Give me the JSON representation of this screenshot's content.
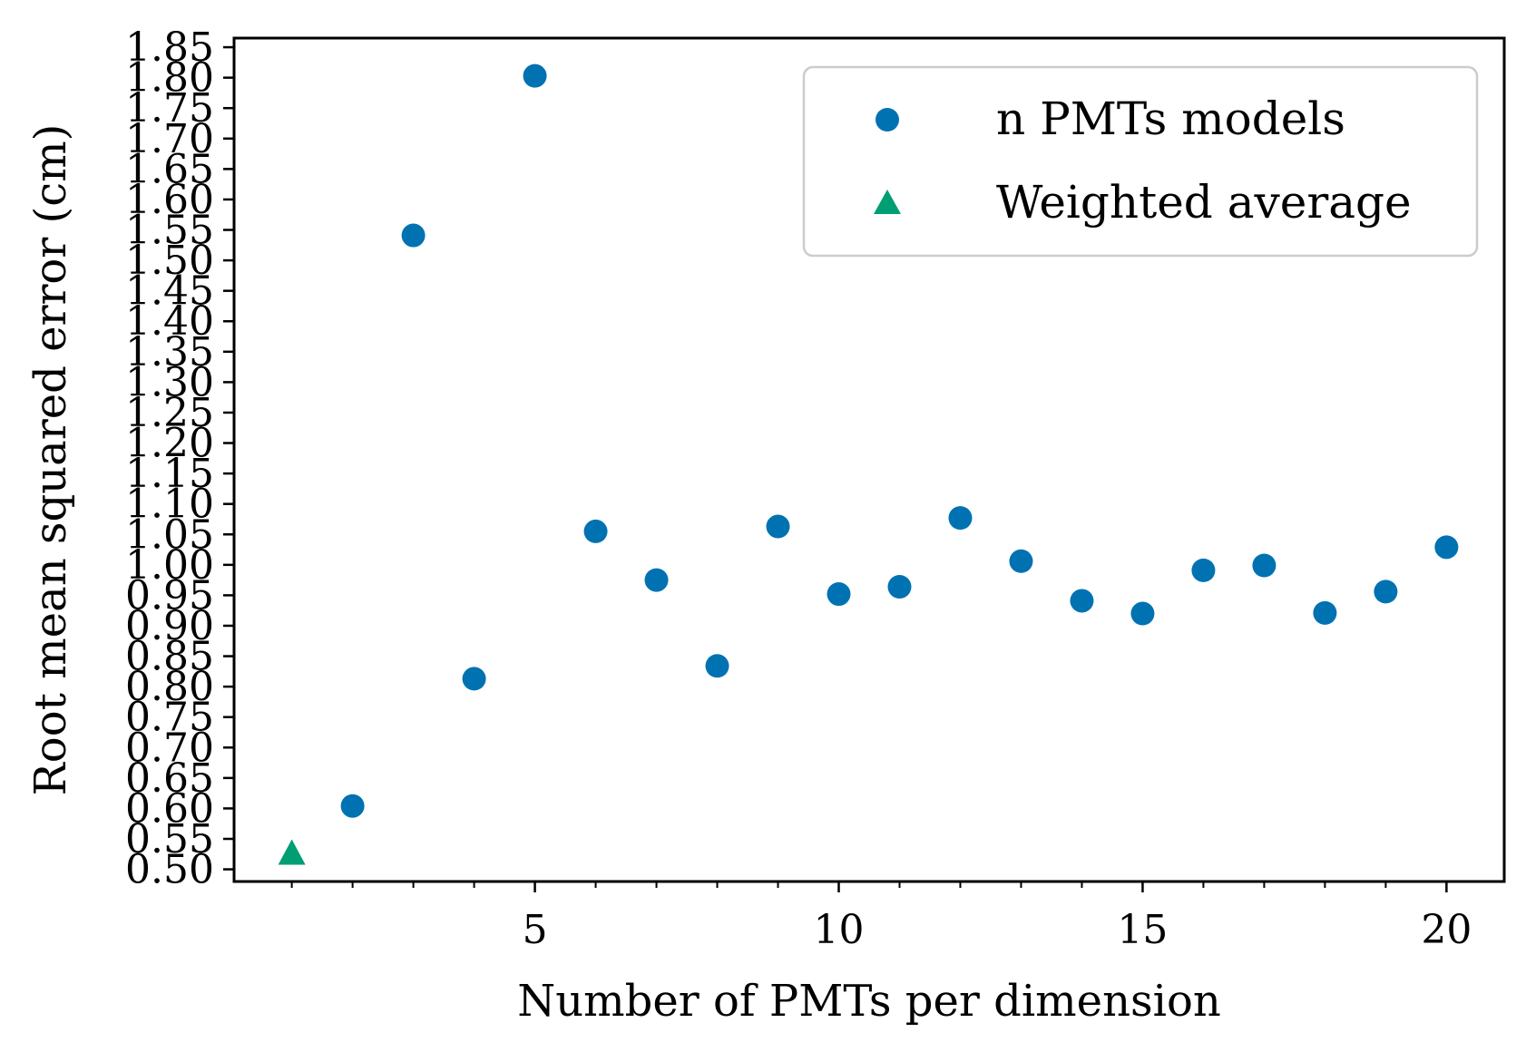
{
  "chart_data": {
    "type": "scatter",
    "xlabel": "Number of PMTs per dimension",
    "ylabel": "Root mean squared error (cm)",
    "xlim": [
      0.05,
      20.95
    ],
    "ylim": [
      0.48,
      1.865
    ],
    "x_ticks": [
      5,
      10,
      15,
      20
    ],
    "x_tick_labels": [
      "5",
      "10",
      "15",
      "20"
    ],
    "x_minor_ticks": [
      1,
      2,
      3,
      4,
      6,
      7,
      8,
      9,
      11,
      12,
      13,
      14,
      16,
      17,
      18,
      19
    ],
    "y_ticks": [
      0.5,
      0.55,
      0.6,
      0.65,
      0.7,
      0.75,
      0.8,
      0.85,
      0.9,
      0.95,
      1.0,
      1.05,
      1.1,
      1.15,
      1.2,
      1.25,
      1.3,
      1.35,
      1.4,
      1.45,
      1.5,
      1.55,
      1.6,
      1.65,
      1.7,
      1.75,
      1.8,
      1.85
    ],
    "y_tick_labels": [
      "0.50",
      "0.55",
      "0.60",
      "0.65",
      "0.70",
      "0.75",
      "0.80",
      "0.85",
      "0.90",
      "0.95",
      "1.00",
      "1.05",
      "1.10",
      "1.15",
      "1.20",
      "1.25",
      "1.30",
      "1.35",
      "1.40",
      "1.45",
      "1.50",
      "1.55",
      "1.60",
      "1.65",
      "1.70",
      "1.75",
      "1.80",
      "1.85"
    ],
    "grid": false,
    "legend_position": "top-right",
    "series": [
      {
        "name": "n PMTs models",
        "marker": "circle",
        "color": "#0072b2",
        "x": [
          2,
          3,
          4,
          5,
          6,
          7,
          8,
          9,
          10,
          11,
          12,
          13,
          14,
          15,
          16,
          17,
          18,
          19,
          20
        ],
        "y": [
          0.604,
          1.541,
          0.813,
          1.803,
          1.055,
          0.975,
          0.834,
          1.063,
          0.952,
          0.964,
          1.077,
          1.006,
          0.941,
          0.92,
          0.991,
          0.999,
          0.921,
          0.956,
          1.029
        ]
      },
      {
        "name": "Weighted average",
        "marker": "triangle",
        "color": "#009e73",
        "x": [
          1
        ],
        "y": [
          0.527
        ]
      }
    ]
  }
}
